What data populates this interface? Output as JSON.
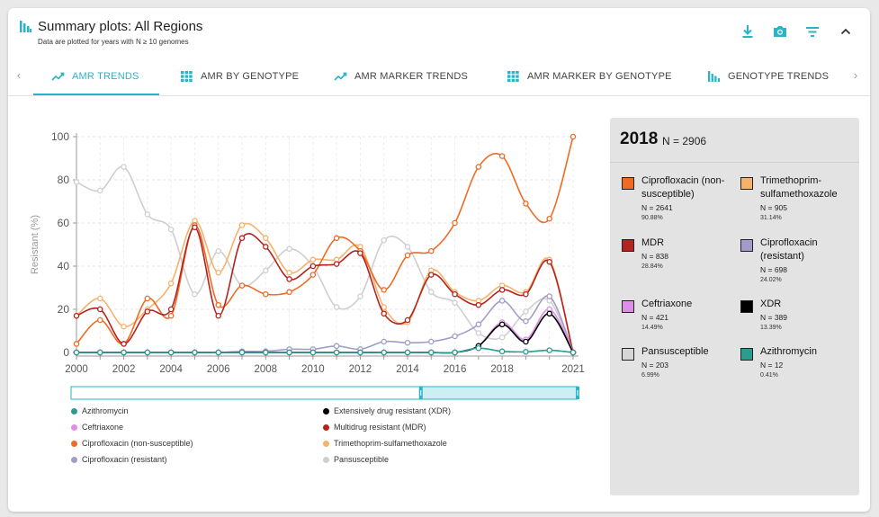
{
  "header": {
    "title": "Summary plots: All Regions",
    "subtitle": "Data are plotted for years with N ≥ 10 genomes",
    "actions": [
      {
        "name": "download-icon"
      },
      {
        "name": "camera-icon"
      },
      {
        "name": "filter-icon"
      },
      {
        "name": "chevron-up-icon"
      }
    ]
  },
  "tabs": [
    {
      "label": "AMR TRENDS",
      "icon": "trend-icon",
      "active": true
    },
    {
      "label": "AMR BY GENOTYPE",
      "icon": "grid-icon",
      "active": false
    },
    {
      "label": "AMR MARKER TRENDS",
      "icon": "trend-icon",
      "active": false
    },
    {
      "label": "AMR MARKER BY GENOTYPE",
      "icon": "grid-icon",
      "active": false
    },
    {
      "label": "GENOTYPE TRENDS",
      "icon": "bar-chart-icon",
      "active": false
    }
  ],
  "accent_color": "#2bb3c6",
  "chart_data": {
    "type": "line",
    "ylabel": "Resistant (%)",
    "ylim": [
      0,
      100
    ],
    "yticks": [
      0,
      20,
      40,
      60,
      80,
      100
    ],
    "xlim": [
      2000,
      2021
    ],
    "xticks": [
      2000,
      2002,
      2004,
      2006,
      2008,
      2010,
      2012,
      2014,
      2016,
      2018,
      2021
    ],
    "x": [
      2000,
      2001,
      2002,
      2003,
      2004,
      2005,
      2006,
      2007,
      2008,
      2009,
      2010,
      2011,
      2012,
      2013,
      2014,
      2015,
      2016,
      2017,
      2018,
      2019,
      2020,
      2021
    ],
    "grid": true,
    "series": [
      {
        "name": "Pansusceptible",
        "color": "#cfcfcf",
        "values": [
          79,
          75,
          86,
          64,
          57,
          27,
          47,
          31,
          38,
          48,
          40,
          21,
          26,
          52,
          49,
          28,
          23,
          9,
          7,
          19,
          24,
          0
        ]
      },
      {
        "name": "Trimethoprim-sulfamethoxazole",
        "color": "#f6b26b",
        "values": [
          17,
          25,
          12,
          20,
          32,
          61,
          37,
          59,
          53,
          37,
          43,
          43,
          49,
          21,
          14,
          38,
          28,
          24,
          31,
          28,
          43,
          0
        ]
      },
      {
        "name": "Ciprofloxacin (non-susceptible)",
        "color": "#ef6b25",
        "values": [
          4,
          15,
          4,
          25,
          17,
          59,
          22,
          31,
          27,
          28,
          36,
          53,
          47,
          29,
          45,
          47,
          60,
          86,
          91,
          69,
          62,
          100
        ]
      },
      {
        "name": "Multidrug resistant (MDR)",
        "color": "#b5231f",
        "values": [
          17,
          20,
          4,
          19,
          20,
          58,
          17,
          53,
          49,
          34,
          40,
          41,
          46,
          18,
          15,
          36,
          27,
          22,
          29,
          27,
          42,
          0
        ]
      },
      {
        "name": "Ciprofloxacin (resistant)",
        "color": "#a49bc8",
        "values": [
          0,
          0,
          0,
          0,
          0,
          0,
          0,
          0.5,
          0.5,
          1.5,
          1.5,
          3,
          1.5,
          5,
          4.5,
          5,
          7.5,
          13,
          24,
          14.5,
          26,
          0
        ]
      },
      {
        "name": "Ceftriaxone",
        "color": "#df8ee8",
        "values": [
          0,
          0,
          0,
          0,
          0,
          0,
          0,
          0,
          0,
          0,
          0,
          0,
          0,
          0,
          0,
          0,
          0,
          3,
          14,
          6,
          20,
          0
        ]
      },
      {
        "name": "Extensively drug resistant (XDR)",
        "color": "#000000",
        "values": [
          0,
          0,
          0,
          0,
          0,
          0,
          0,
          0,
          0,
          0,
          0,
          0,
          0,
          0,
          0,
          0,
          0,
          3,
          13,
          5,
          18,
          0
        ]
      },
      {
        "name": "Azithromycin",
        "color": "#2a9d8f",
        "values": [
          0,
          0,
          0,
          0,
          0,
          0,
          0,
          0,
          0,
          0,
          0,
          0,
          0,
          0,
          0,
          0,
          0,
          2,
          0.5,
          0.3,
          1,
          0
        ]
      }
    ],
    "brush_range": [
      2014.5,
      2021
    ]
  },
  "legend": [
    {
      "label": "Azithromycin",
      "color": "#2a9d8f"
    },
    {
      "label": "Extensively drug resistant (XDR)",
      "color": "#000000"
    },
    {
      "label": "Ceftriaxone",
      "color": "#df8ee8"
    },
    {
      "label": "Multidrug resistant (MDR)",
      "color": "#b5231f"
    },
    {
      "label": "Ciprofloxacin (non-susceptible)",
      "color": "#ef6b25"
    },
    {
      "label": "Trimethoprim-sulfamethoxazole",
      "color": "#f6b26b"
    },
    {
      "label": "Ciprofloxacin (resistant)",
      "color": "#a49bc8"
    },
    {
      "label": "Pansusceptible",
      "color": "#cfcfcf"
    }
  ],
  "panel": {
    "year": "2018",
    "n_label": "N = 2906",
    "items": [
      {
        "name": "Ciprofloxacin (non-susceptible)",
        "n": "N = 2641",
        "pct": "90.88%",
        "color": "#ef6b25"
      },
      {
        "name": "Trimethoprim-sulfamethoxazole",
        "n": "N = 905",
        "pct": "31.14%",
        "color": "#f6b26b"
      },
      {
        "name": "MDR",
        "n": "N = 838",
        "pct": "28.84%",
        "color": "#b5231f"
      },
      {
        "name": "Ciprofloxacin (resistant)",
        "n": "N = 698",
        "pct": "24.02%",
        "color": "#a49bc8"
      },
      {
        "name": "Ceftriaxone",
        "n": "N = 421",
        "pct": "14.49%",
        "color": "#df8ee8"
      },
      {
        "name": "XDR",
        "n": "N = 389",
        "pct": "13.39%",
        "color": "#000000"
      },
      {
        "name": "Pansusceptible",
        "n": "N = 203",
        "pct": "6.99%",
        "color": "#d6d6d6"
      },
      {
        "name": "Azithromycin",
        "n": "N = 12",
        "pct": "0.41%",
        "color": "#2a9d8f"
      }
    ]
  }
}
